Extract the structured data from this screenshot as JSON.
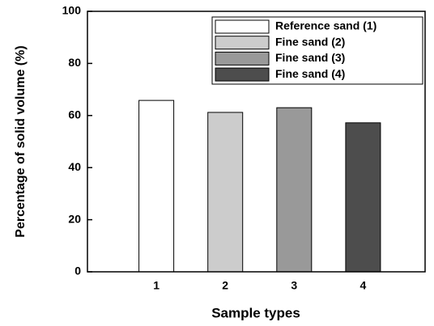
{
  "chart_data": {
    "type": "bar",
    "x_label": "Sample types",
    "y_label": "Percentage of solid volume (%)",
    "xlim": [
      0,
      4.9
    ],
    "xticks": [
      1,
      2,
      3,
      4
    ],
    "ylim": [
      0,
      100
    ],
    "yticks": [
      0,
      20,
      40,
      60,
      80,
      100
    ],
    "legend": "upper right",
    "series": [
      {
        "name": "Reference sand (1)",
        "color": "#ffffff",
        "x": [
          1
        ],
        "values": [
          65.8
        ]
      },
      {
        "name": "Fine sand (2)",
        "color": "#cccccc",
        "x": [
          2
        ],
        "values": [
          61.2
        ]
      },
      {
        "name": "Fine sand (3)",
        "color": "#999999",
        "x": [
          3
        ],
        "values": [
          63
        ]
      },
      {
        "name": "Fine sand (4)",
        "color": "#4d4d4d",
        "x": [
          4
        ],
        "values": [
          57.2
        ]
      }
    ]
  }
}
